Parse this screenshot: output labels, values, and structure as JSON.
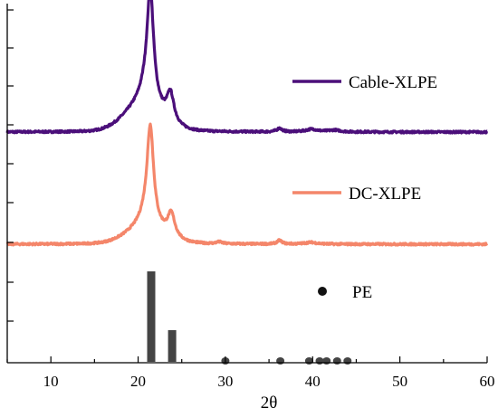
{
  "chart_data": {
    "type": "line",
    "xlabel": "2θ",
    "xlim": [
      5,
      60
    ],
    "x_ticks": [
      10,
      20,
      30,
      40,
      50,
      60
    ],
    "x_tick_labels": [
      "10",
      "20",
      "30",
      "40",
      "50",
      "60"
    ],
    "y_tick_labels_shown": false,
    "grid": false,
    "series": [
      {
        "name": "Cable-XLPE",
        "color": "#4b0f7a",
        "peaks": [
          {
            "x": 21.4,
            "height": 117,
            "width": 0.45
          },
          {
            "x": 21.0,
            "height": 20,
            "width": 1.0
          },
          {
            "x": 23.7,
            "height": 32,
            "width": 0.5
          },
          {
            "x": 36.2,
            "height": 4,
            "width": 0.35
          },
          {
            "x": 39.9,
            "height": 3,
            "width": 0.8
          },
          {
            "x": 42.5,
            "height": 2,
            "width": 0.8
          }
        ],
        "amorphous_halo": {
          "center": 20.5,
          "height": 26,
          "width": 3.0
        }
      },
      {
        "name": "DC-XLPE",
        "color": "#f4866a",
        "peaks": [
          {
            "x": 21.4,
            "height": 104,
            "width": 0.45
          },
          {
            "x": 21.0,
            "height": 14,
            "width": 1.0
          },
          {
            "x": 23.8,
            "height": 26,
            "width": 0.5
          },
          {
            "x": 29.3,
            "height": 2,
            "width": 0.4
          },
          {
            "x": 36.2,
            "height": 4,
            "width": 0.35
          },
          {
            "x": 39.8,
            "height": 2,
            "width": 0.8
          }
        ],
        "amorphous_halo": {
          "center": 20.8,
          "height": 16,
          "width": 3.0
        }
      },
      {
        "name": "PE",
        "type": "reference-bars",
        "color": "#444444",
        "marker_color": "#111111",
        "bars": [
          {
            "x": 21.5,
            "intensity": 100
          },
          {
            "x": 23.9,
            "intensity": 35
          },
          {
            "x": 30.0,
            "intensity": 3
          },
          {
            "x": 36.3,
            "intensity": 4
          },
          {
            "x": 39.6,
            "intensity": 4
          },
          {
            "x": 40.8,
            "intensity": 5
          },
          {
            "x": 41.6,
            "intensity": 4
          },
          {
            "x": 42.8,
            "intensity": 4
          },
          {
            "x": 44.0,
            "intensity": 3
          }
        ]
      }
    ]
  }
}
